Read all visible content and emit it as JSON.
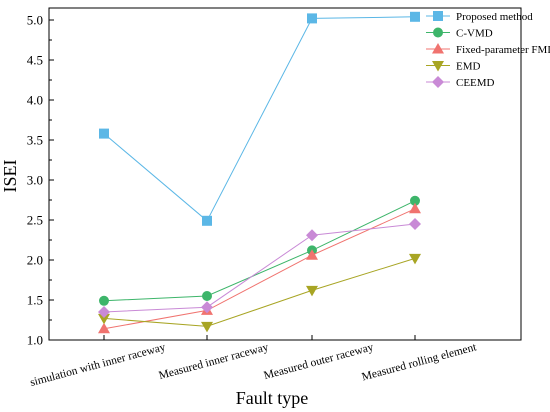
{
  "chart_data": {
    "type": "line",
    "title": "",
    "xlabel": "Fault type",
    "ylabel": "ISEI",
    "categories": [
      "simulation with inner raceway",
      "Measured inner raceway",
      "Measured outer raceway",
      "Measured rolling element"
    ],
    "ylim": [
      1.0,
      5.15
    ],
    "yticks": [
      "1.0",
      "1.5",
      "2.0",
      "2.5",
      "3.0",
      "3.5",
      "4.0",
      "4.5",
      "5.0"
    ],
    "grid": false,
    "legend_position": "top-right",
    "series": [
      {
        "name": "Proposed method",
        "color": "#5BB7E6",
        "marker": "square",
        "values": [
          3.58,
          2.49,
          5.02,
          5.04
        ]
      },
      {
        "name": "C-VMD",
        "color": "#3DB56A",
        "marker": "circle",
        "values": [
          1.49,
          1.55,
          2.12,
          2.74
        ]
      },
      {
        "name": "Fixed-parameter FMD",
        "color": "#F0736F",
        "marker": "triangle-up",
        "values": [
          1.14,
          1.37,
          2.06,
          2.64
        ]
      },
      {
        "name": "EMD",
        "color": "#A8A524",
        "marker": "triangle-down",
        "values": [
          1.27,
          1.17,
          1.62,
          2.02
        ]
      },
      {
        "name": "CEEMD",
        "color": "#C98AD6",
        "marker": "diamond",
        "values": [
          1.35,
          1.41,
          2.31,
          2.45
        ]
      }
    ]
  }
}
